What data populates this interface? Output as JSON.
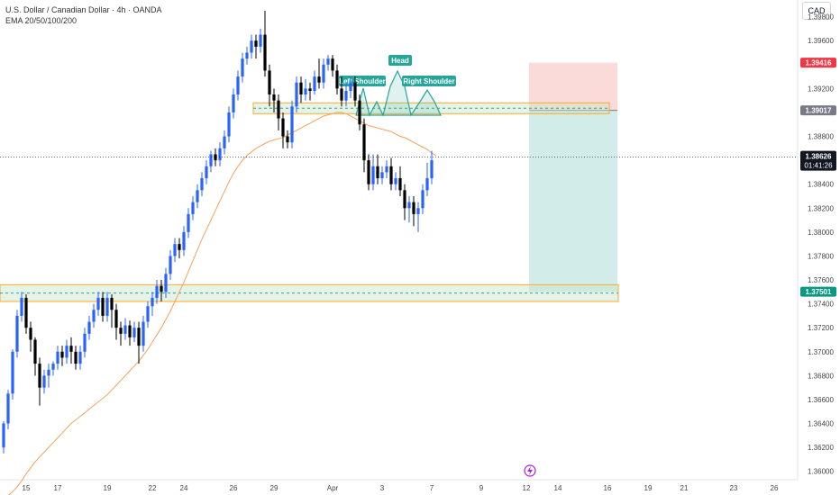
{
  "header": {
    "symbol_line": "U.S. Dollar / Canadian Dollar · 4h · OANDA",
    "indicator_line": "EMA 20/50/100/200"
  },
  "currency_button": "CAD",
  "colors": {
    "up": "#2962ff",
    "down": "#000000",
    "ema": "#f5a25d",
    "zone_fill": "#c8e6c9",
    "zone_border": "#ffa726",
    "stop_zone": "#f8bbbb",
    "target_zone": "#b2dfdb",
    "pattern": "#26a69a",
    "current_price_label": "#131722",
    "stop_label": "#f23645",
    "entry_label": "#787b86",
    "target_label": "#089981"
  },
  "chart_data": {
    "type": "candlestick",
    "title": "U.S. Dollar / Canadian Dollar · 4h · OANDA",
    "ylim": [
      1.3593,
      1.3994
    ],
    "y_ticks": [
      "1.39800",
      "1.39600",
      "1.39200",
      "1.38800",
      "1.38400",
      "1.38200",
      "1.38000",
      "1.37800",
      "1.37600",
      "1.37400",
      "1.37200",
      "1.37000",
      "1.36800",
      "1.36600",
      "1.36400",
      "1.36200",
      "1.36000"
    ],
    "y_tick_values": [
      1.398,
      1.396,
      1.392,
      1.388,
      1.384,
      1.382,
      1.38,
      1.378,
      1.376,
      1.374,
      1.372,
      1.37,
      1.368,
      1.366,
      1.364,
      1.362,
      1.36
    ],
    "x_ticks": [
      "15",
      "17",
      "19",
      "22",
      "24",
      "26",
      "29",
      "Apr",
      "3",
      "7",
      "9",
      "12",
      "14",
      "16",
      "19",
      "21",
      "23",
      "26"
    ],
    "x_tick_index": [
      5,
      12,
      23,
      33,
      40,
      51,
      60,
      73,
      84,
      95,
      106,
      116,
      123,
      134,
      143,
      151,
      162,
      171
    ],
    "grid": false,
    "candles": [
      [
        1.362,
        1.364,
        1.3615,
        1.3642
      ],
      [
        1.364,
        1.3665,
        1.3635,
        1.3668
      ],
      [
        1.3665,
        1.37,
        1.366,
        1.3702
      ],
      [
        1.37,
        1.373,
        1.3695,
        1.3735
      ],
      [
        1.373,
        1.3745,
        1.3725,
        1.375
      ],
      [
        1.3745,
        1.372,
        1.3715,
        1.3748
      ],
      [
        1.372,
        1.371,
        1.37,
        1.3725
      ],
      [
        1.371,
        1.369,
        1.368,
        1.3712
      ],
      [
        1.369,
        1.367,
        1.3655,
        1.3695
      ],
      [
        1.367,
        1.368,
        1.3665,
        1.3685
      ],
      [
        1.368,
        1.3685,
        1.367,
        1.369
      ],
      [
        1.3685,
        1.369,
        1.368,
        1.3692
      ],
      [
        1.369,
        1.37,
        1.3685,
        1.3705
      ],
      [
        1.37,
        1.3695,
        1.3688,
        1.3705
      ],
      [
        1.3695,
        1.3705,
        1.369,
        1.371
      ],
      [
        1.3705,
        1.37,
        1.369,
        1.3712
      ],
      [
        1.37,
        1.369,
        1.3685,
        1.3705
      ],
      [
        1.369,
        1.37,
        1.3685,
        1.3705
      ],
      [
        1.37,
        1.3715,
        1.3695,
        1.372
      ],
      [
        1.3715,
        1.3725,
        1.371,
        1.373
      ],
      [
        1.3725,
        1.3735,
        1.372,
        1.374
      ],
      [
        1.3735,
        1.3745,
        1.373,
        1.375
      ],
      [
        1.3745,
        1.373,
        1.3725,
        1.375
      ],
      [
        1.373,
        1.3745,
        1.3725,
        1.375
      ],
      [
        1.3745,
        1.3735,
        1.372,
        1.3748
      ],
      [
        1.3735,
        1.372,
        1.371,
        1.374
      ],
      [
        1.372,
        1.3715,
        1.3705,
        1.3725
      ],
      [
        1.3715,
        1.3722,
        1.371,
        1.3728
      ],
      [
        1.3722,
        1.3712,
        1.3705,
        1.3726
      ],
      [
        1.3712,
        1.372,
        1.3708,
        1.3725
      ],
      [
        1.372,
        1.3705,
        1.369,
        1.3725
      ],
      [
        1.3705,
        1.3725,
        1.37,
        1.373
      ],
      [
        1.3725,
        1.3738,
        1.372,
        1.3742
      ],
      [
        1.3738,
        1.3745,
        1.373,
        1.375
      ],
      [
        1.3745,
        1.3755,
        1.374,
        1.376
      ],
      [
        1.3755,
        1.375,
        1.3742,
        1.376
      ],
      [
        1.375,
        1.3765,
        1.3745,
        1.377
      ],
      [
        1.3765,
        1.378,
        1.376,
        1.3785
      ],
      [
        1.378,
        1.379,
        1.3775,
        1.3795
      ],
      [
        1.379,
        1.3785,
        1.3778,
        1.3795
      ],
      [
        1.3785,
        1.38,
        1.378,
        1.3805
      ],
      [
        1.38,
        1.3815,
        1.3795,
        1.382
      ],
      [
        1.3815,
        1.3825,
        1.381,
        1.383
      ],
      [
        1.3825,
        1.3835,
        1.382,
        1.384
      ],
      [
        1.3835,
        1.3845,
        1.383,
        1.385
      ],
      [
        1.3845,
        1.3855,
        1.384,
        1.386
      ],
      [
        1.3855,
        1.3865,
        1.385,
        1.3868
      ],
      [
        1.3865,
        1.386,
        1.3855,
        1.387
      ],
      [
        1.386,
        1.387,
        1.3855,
        1.3875
      ],
      [
        1.387,
        1.388,
        1.3865,
        1.3885
      ],
      [
        1.388,
        1.39,
        1.3875,
        1.3905
      ],
      [
        1.39,
        1.3915,
        1.3895,
        1.392
      ],
      [
        1.3915,
        1.393,
        1.391,
        1.3935
      ],
      [
        1.393,
        1.3945,
        1.3925,
        1.395
      ],
      [
        1.3945,
        1.395,
        1.394,
        1.3955
      ],
      [
        1.395,
        1.396,
        1.3945,
        1.3965
      ],
      [
        1.396,
        1.3955,
        1.3945,
        1.3965
      ],
      [
        1.3955,
        1.3965,
        1.395,
        1.397
      ],
      [
        1.3965,
        1.3935,
        1.393,
        1.3985
      ],
      [
        1.3935,
        1.3915,
        1.3905,
        1.394
      ],
      [
        1.3915,
        1.391,
        1.39,
        1.392
      ],
      [
        1.391,
        1.3895,
        1.3885,
        1.3915
      ],
      [
        1.3895,
        1.388,
        1.387,
        1.39
      ],
      [
        1.388,
        1.3875,
        1.387,
        1.3885
      ],
      [
        1.3875,
        1.3905,
        1.387,
        1.391
      ],
      [
        1.3905,
        1.3925,
        1.39,
        1.393
      ],
      [
        1.3925,
        1.3915,
        1.3908,
        1.393
      ],
      [
        1.3915,
        1.392,
        1.391,
        1.3928
      ],
      [
        1.392,
        1.3918,
        1.391,
        1.3925
      ],
      [
        1.3918,
        1.393,
        1.3915,
        1.3935
      ],
      [
        1.393,
        1.3925,
        1.392,
        1.3945
      ],
      [
        1.3925,
        1.394,
        1.392,
        1.3945
      ],
      [
        1.394,
        1.3945,
        1.3935,
        1.3948
      ],
      [
        1.3945,
        1.3935,
        1.393,
        1.3948
      ],
      [
        1.3935,
        1.392,
        1.3915,
        1.394
      ],
      [
        1.392,
        1.391,
        1.3905,
        1.393
      ],
      [
        1.391,
        1.3918,
        1.3905,
        1.3925
      ],
      [
        1.3918,
        1.3925,
        1.3912,
        1.393
      ],
      [
        1.3925,
        1.391,
        1.3905,
        1.393
      ],
      [
        1.391,
        1.389,
        1.3885,
        1.3915
      ],
      [
        1.389,
        1.386,
        1.385,
        1.3895
      ],
      [
        1.386,
        1.384,
        1.3835,
        1.3865
      ],
      [
        1.384,
        1.3855,
        1.3835,
        1.3865
      ],
      [
        1.3855,
        1.3845,
        1.384,
        1.3865
      ],
      [
        1.3845,
        1.385,
        1.384,
        1.3855
      ],
      [
        1.385,
        1.3855,
        1.3845,
        1.386
      ],
      [
        1.3855,
        1.384,
        1.3835,
        1.3862
      ],
      [
        1.384,
        1.3845,
        1.3835,
        1.385
      ],
      [
        1.3845,
        1.3835,
        1.383,
        1.3855
      ],
      [
        1.3835,
        1.382,
        1.381,
        1.384
      ],
      [
        1.382,
        1.3825,
        1.3808,
        1.383
      ],
      [
        1.3825,
        1.3815,
        1.3805,
        1.383
      ],
      [
        1.3815,
        1.382,
        1.38,
        1.3825
      ],
      [
        1.382,
        1.3835,
        1.3815,
        1.384
      ],
      [
        1.3835,
        1.3845,
        1.383,
        1.3858
      ],
      [
        1.3845,
        1.386,
        1.384,
        1.3868
      ]
    ],
    "ema_line": [
      1.3578,
      1.358,
      1.3583,
      1.3587,
      1.3592,
      1.3598,
      1.3603,
      1.3608,
      1.3612,
      1.3616,
      1.362,
      1.3624,
      1.3628,
      1.3632,
      1.3636,
      1.364,
      1.3643,
      1.3646,
      1.3649,
      1.3652,
      1.3655,
      1.3658,
      1.3661,
      1.3664,
      1.3668,
      1.3672,
      1.3676,
      1.368,
      1.3684,
      1.3688,
      1.3692,
      1.3697,
      1.3702,
      1.3708,
      1.3714,
      1.372,
      1.3727,
      1.3734,
      1.3742,
      1.375,
      1.3758,
      1.3767,
      1.3776,
      1.3785,
      1.3794,
      1.3802,
      1.381,
      1.3818,
      1.3826,
      1.3834,
      1.3842,
      1.3849,
      1.3855,
      1.386,
      1.3864,
      1.3867,
      1.387,
      1.3872,
      1.3874,
      1.3876,
      1.3877,
      1.3878,
      1.3879,
      1.3881,
      1.3883,
      1.3885,
      1.3887,
      1.3889,
      1.3891,
      1.3893,
      1.3895,
      1.3897,
      1.3898,
      1.3899,
      1.39,
      1.39,
      1.3899,
      1.3897,
      1.3895,
      1.3893,
      1.3891,
      1.3889,
      1.3888,
      1.3887,
      1.3886,
      1.3885,
      1.3884,
      1.3882,
      1.388,
      1.3879,
      1.3877,
      1.3875,
      1.3873,
      1.3871,
      1.3869,
      1.3866,
      1.3864
    ],
    "zones": [
      {
        "top": 1.3908,
        "bottom": 1.3899
      },
      {
        "top": 1.3756,
        "bottom": 1.3742
      }
    ],
    "pattern_labels": [
      "Left Shoulder",
      "Head",
      "Right Shoulder"
    ],
    "position": {
      "stop": 1.39416,
      "entry": 1.39017,
      "target": 1.37501
    },
    "price_labels": {
      "stop": "1.39416",
      "entry": "1.39017",
      "target": "1.37501",
      "current": "1.38626",
      "countdown": "01:41:26"
    },
    "current_price": 1.38626
  }
}
